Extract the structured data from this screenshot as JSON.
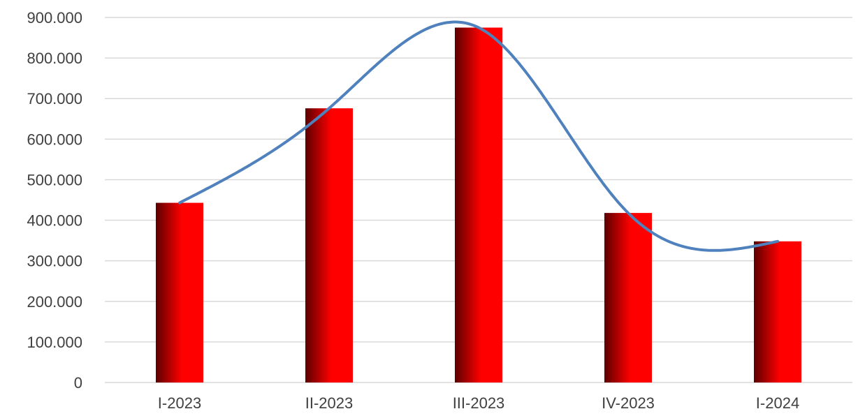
{
  "chart_data": {
    "type": "bar",
    "title": "",
    "xlabel": "",
    "ylabel": "",
    "categories": [
      "I-2023",
      "II-2023",
      "III-2023",
      "IV-2023",
      "I-2024"
    ],
    "series": [
      {
        "values": [
          443000,
          676000,
          875000,
          418000,
          348000
        ]
      }
    ],
    "ylim": [
      0,
      900000
    ],
    "y_ticks": [
      "0",
      "100.000",
      "200.000",
      "300.000",
      "400.000",
      "500.000",
      "600.000",
      "700.000",
      "800.000",
      "900.000"
    ],
    "y_tick_values": [
      0,
      100000,
      200000,
      300000,
      400000,
      500000,
      600000,
      700000,
      800000,
      900000
    ],
    "grid": true,
    "legend": "none",
    "smooth_line": true,
    "colors": {
      "bar_light": "#ff0000",
      "bar_dark": "#5c0000",
      "line": "#4f81bd",
      "grid": "#d9d9d9"
    }
  }
}
